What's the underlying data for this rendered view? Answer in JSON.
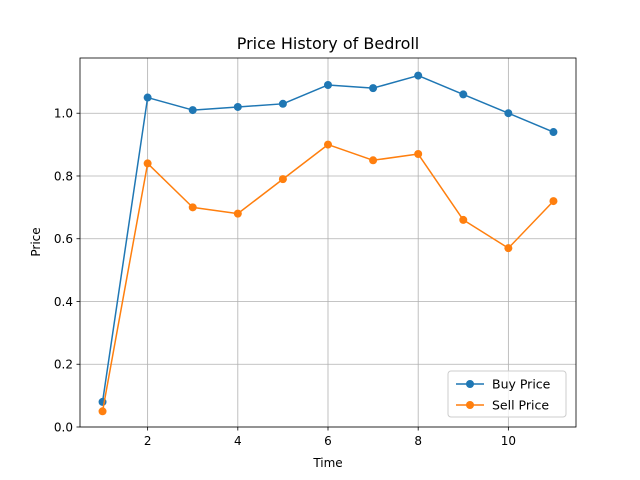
{
  "chart_data": {
    "type": "line",
    "title": "Price History of Bedroll",
    "xlabel": "Time",
    "ylabel": "Price",
    "x": [
      1,
      2,
      3,
      4,
      5,
      6,
      7,
      8,
      9,
      10,
      11
    ],
    "series": [
      {
        "name": "Buy Price",
        "color": "#1f77b4",
        "values": [
          0.08,
          1.05,
          1.01,
          1.02,
          1.03,
          1.09,
          1.08,
          1.12,
          1.06,
          1.0,
          0.94
        ]
      },
      {
        "name": "Sell Price",
        "color": "#ff7f0e",
        "values": [
          0.05,
          0.84,
          0.7,
          0.68,
          0.79,
          0.9,
          0.85,
          0.87,
          0.66,
          0.57,
          0.72
        ]
      }
    ],
    "xlim": [
      0.5,
      11.5
    ],
    "ylim": [
      0.0,
      1.176
    ],
    "xticks": [
      2,
      4,
      6,
      8,
      10
    ],
    "yticks": [
      0.0,
      0.2,
      0.4,
      0.6,
      0.8,
      1.0
    ],
    "xtick_labels": [
      "2",
      "4",
      "6",
      "8",
      "10"
    ],
    "ytick_labels": [
      "0.0",
      "0.2",
      "0.4",
      "0.6",
      "0.8",
      "1.0"
    ],
    "grid": true,
    "legend_position": "lower-right"
  }
}
